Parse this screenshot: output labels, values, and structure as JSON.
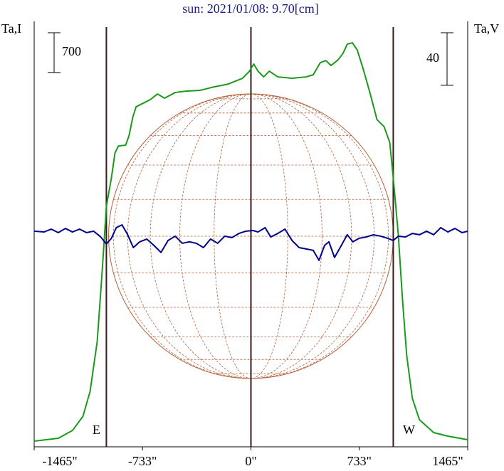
{
  "chart_data": {
    "type": "line",
    "title": "sun: 2021/01/08: 9.70[cm]",
    "y_label": "Ta,I",
    "y2_label": "Ta,V",
    "xlim": [
      -1465,
      1465
    ],
    "xticks": [
      {
        "value": -1465,
        "label": "-1465\""
      },
      {
        "value": -733,
        "label": "-733\""
      },
      {
        "value": 0,
        "label": "0\""
      },
      {
        "value": 733,
        "label": "733\""
      },
      {
        "value": 1465,
        "label": "1465\""
      }
    ],
    "ylim": [
      0,
      7500
    ],
    "y2lim": [
      -162,
      162
    ],
    "scale_bars": {
      "y": 700,
      "y2": 40
    },
    "markers": [
      {
        "x": -977,
        "label": "E"
      },
      {
        "x": 0
      },
      {
        "x": 962,
        "label": "W"
      }
    ],
    "disk_radius": 962,
    "series": [
      {
        "color": "#1a9a1a",
        "x": [
          -1465,
          -1302,
          -1206,
          -1135,
          -1087,
          -1039,
          -1005,
          -977,
          -943,
          -919,
          -895,
          -847,
          -823,
          -799,
          -776,
          -728,
          -680,
          -632,
          -584,
          -512,
          -440,
          -345,
          -249,
          -153,
          -57,
          -10,
          19,
          48,
          86,
          124,
          182,
          278,
          373,
          421,
          469,
          507,
          541,
          589,
          622,
          651,
          685,
          718,
          756,
          804,
          852,
          900,
          938,
          962,
          996,
          1024,
          1053,
          1091,
          1139,
          1235,
          1331,
          1465
        ],
        "values": [
          100,
          150,
          288,
          539,
          978,
          1856,
          3110,
          4239,
          4740,
          5179,
          5304,
          5317,
          5493,
          5806,
          5994,
          6057,
          6120,
          6220,
          6145,
          6245,
          6270,
          6283,
          6345,
          6395,
          6496,
          6621,
          6747,
          6621,
          6521,
          6621,
          6521,
          6496,
          6521,
          6558,
          6772,
          6809,
          6721,
          6822,
          6935,
          7098,
          7123,
          6997,
          6684,
          6245,
          5768,
          5643,
          5367,
          4740,
          3737,
          2608,
          1605,
          853,
          477,
          251,
          188,
          125
        ]
      },
      {
        "color": "#00008b",
        "axis": "y2",
        "x": [
          -1465,
          -1398,
          -1350,
          -1302,
          -1254,
          -1206,
          -1158,
          -1111,
          -1063,
          -1015,
          -977,
          -943,
          -910,
          -871,
          -833,
          -795,
          -752,
          -704,
          -656,
          -608,
          -560,
          -512,
          -464,
          -416,
          -369,
          -321,
          -273,
          -225,
          -177,
          -129,
          -81,
          -34,
          14,
          48,
          96,
          134,
          182,
          230,
          278,
          326,
          373,
          421,
          460,
          498,
          527,
          565,
          603,
          651,
          689,
          732,
          780,
          828,
          876,
          924,
          962,
          996,
          1044,
          1091,
          1139,
          1187,
          1235,
          1283,
          1331,
          1379,
          1427,
          1465
        ],
        "values": [
          2.2,
          1.6,
          3.8,
          1.1,
          4.3,
          1.6,
          3.8,
          1.1,
          2.2,
          -2.2,
          -7.6,
          -3.2,
          4.9,
          7.0,
          -0.5,
          -10.3,
          -5.9,
          -3.8,
          -8.6,
          -14.0,
          -4.9,
          -1.6,
          -7.0,
          -5.9,
          -7.0,
          -10.3,
          -3.8,
          -7.0,
          -1.6,
          -2.7,
          0.5,
          2.2,
          2.7,
          1.6,
          4.9,
          -2.2,
          0.5,
          3.8,
          -4.9,
          -10.3,
          -11.3,
          -12.4,
          -20.0,
          -8.6,
          -5.9,
          -17.8,
          -10.3,
          -0.5,
          -5.9,
          -3.2,
          -2.2,
          -0.5,
          -1.6,
          -3.2,
          -4.9,
          -1.6,
          -2.2,
          0.5,
          -0.5,
          2.2,
          -0.5,
          4.9,
          1.6,
          4.3,
          1.1,
          2.2
        ]
      }
    ]
  }
}
